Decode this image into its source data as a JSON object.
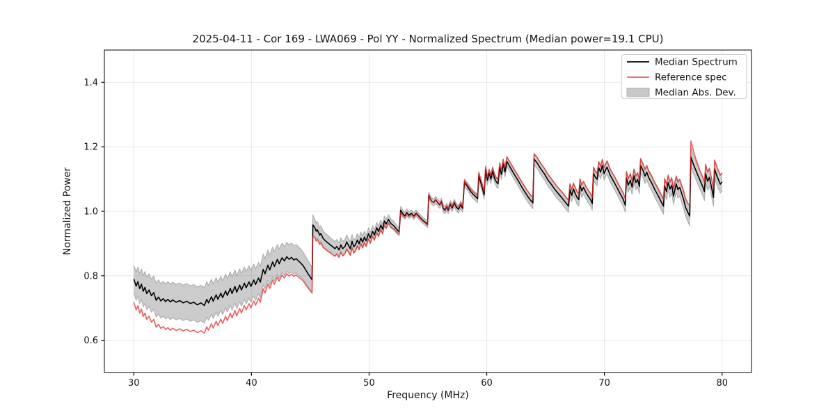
{
  "figure": {
    "title": "2025-04-11 - Cor 169 - LWA069 - Pol YY - Normalized Spectrum (Median power=19.1 CPU)",
    "xlabel": "Frequency (MHz)",
    "ylabel": "Normalized Power"
  },
  "legend": {
    "items": [
      {
        "label": "Median Spectrum",
        "type": "line",
        "color": "#000000"
      },
      {
        "label": "Reference spec",
        "type": "line",
        "color": "#ec5e5e"
      },
      {
        "label": "Median Abs. Dev.",
        "type": "patch",
        "color": "#c9c9c9",
        "edge": "#adadad"
      }
    ]
  },
  "chart_data": {
    "type": "line",
    "title": "2025-04-11 - Cor 169 - LWA069 - Pol YY - Normalized Spectrum (Median power=19.1 CPU)",
    "xlabel": "Frequency (MHz)",
    "ylabel": "Normalized Power",
    "xlim": [
      27.5,
      82.5
    ],
    "ylim": [
      0.5,
      1.5
    ],
    "x_ticks": [
      30,
      40,
      50,
      60,
      70,
      80
    ],
    "x_tick_labels": [
      "30",
      "40",
      "50",
      "60",
      "70",
      "80"
    ],
    "y_ticks": [
      0.6,
      0.8,
      1.0,
      1.2,
      1.4
    ],
    "y_tick_labels": [
      "0.6",
      "0.8",
      "1.0",
      "1.2",
      "1.4"
    ],
    "grid": true,
    "legend_position": "upper right",
    "colors": {
      "median": "#000000",
      "reference": "#e62020",
      "reference_opacity": 0.72,
      "band_fill": "rgba(128,128,128,0.40)",
      "band_edge": "rgba(130,130,130,0.60)",
      "grid": "#e6e6e6"
    },
    "series": [
      {
        "name": "Median Spectrum",
        "x": [
          30.0,
          30.2,
          30.35,
          30.5,
          30.65,
          30.8,
          30.95,
          31.1,
          31.3,
          31.5,
          31.7,
          31.9,
          32.1,
          32.3,
          32.5,
          32.7,
          32.9,
          33.1,
          33.3,
          33.6,
          33.9,
          34.2,
          34.5,
          34.8,
          35.1,
          35.4,
          35.7,
          36.0,
          36.2,
          36.35,
          36.6,
          36.75,
          37.0,
          37.15,
          37.4,
          37.55,
          37.8,
          37.95,
          38.2,
          38.35,
          38.6,
          38.75,
          39.0,
          39.15,
          39.4,
          39.55,
          39.8,
          39.95,
          40.2,
          40.35,
          40.6,
          40.75,
          41.0,
          41.15,
          41.4,
          41.55,
          41.8,
          41.95,
          42.2,
          42.35,
          42.6,
          42.8,
          43.0,
          43.2,
          43.4,
          43.6,
          43.8,
          44.0,
          44.2,
          44.4,
          44.6,
          44.8,
          45.0,
          45.15,
          45.22,
          45.4,
          45.5,
          45.6,
          45.8,
          45.9,
          46.1,
          46.3,
          46.5,
          46.7,
          46.9,
          47.1,
          47.25,
          47.45,
          47.6,
          47.75,
          47.95,
          48.1,
          48.25,
          48.4,
          48.55,
          48.7,
          48.85,
          49.0,
          49.15,
          49.3,
          49.45,
          49.6,
          49.75,
          49.95,
          50.1,
          50.3,
          50.45,
          50.65,
          50.8,
          51.0,
          51.15,
          51.3,
          51.45,
          51.65,
          51.85,
          52.1,
          52.3,
          52.55,
          52.68,
          52.9,
          53.05,
          53.2,
          53.4,
          53.6,
          53.8,
          54.0,
          54.2,
          54.4,
          54.6,
          54.8,
          54.97,
          55.07,
          55.3,
          55.5,
          55.65,
          55.85,
          56.0,
          56.15,
          56.3,
          56.45,
          56.6,
          56.72,
          56.9,
          57.05,
          57.25,
          57.4,
          57.6,
          57.78,
          57.95,
          58.1,
          58.35,
          58.6,
          58.85,
          59.1,
          59.22,
          59.32,
          59.55,
          59.78,
          59.9,
          60.05,
          60.2,
          60.35,
          60.5,
          60.65,
          60.8,
          60.95,
          61.1,
          61.25,
          61.4,
          61.55,
          61.72,
          61.95,
          62.2,
          62.45,
          62.7,
          62.95,
          63.2,
          63.45,
          63.7,
          63.92,
          64.02,
          64.3,
          64.6,
          64.9,
          65.2,
          65.5,
          65.8,
          66.1,
          66.4,
          66.7,
          66.95,
          67.07,
          67.22,
          67.37,
          67.52,
          67.67,
          67.82,
          67.92,
          68.07,
          68.22,
          68.42,
          68.62,
          68.82,
          68.97,
          69.07,
          69.22,
          69.37,
          69.52,
          69.67,
          69.82,
          69.97,
          70.12,
          70.22,
          70.5,
          70.9,
          71.3,
          71.6,
          71.77,
          71.87,
          72.02,
          72.2,
          72.35,
          72.52,
          72.67,
          72.82,
          72.97,
          73.07,
          73.3,
          73.45,
          73.6,
          73.78,
          74.0,
          74.3,
          74.6,
          74.9,
          75.02,
          75.12,
          75.27,
          75.42,
          75.57,
          75.72,
          75.87,
          76.1,
          76.25,
          76.4,
          76.55,
          76.72,
          76.9,
          77.1,
          77.25,
          77.35,
          77.6,
          77.85,
          78.1,
          78.35,
          78.5,
          78.6,
          78.77,
          78.92,
          79.1,
          79.27,
          79.37,
          79.55,
          79.7,
          79.85,
          80.0
        ],
        "y": [
          0.79,
          0.768,
          0.782,
          0.76,
          0.774,
          0.752,
          0.764,
          0.745,
          0.756,
          0.738,
          0.748,
          0.724,
          0.734,
          0.722,
          0.729,
          0.72,
          0.727,
          0.719,
          0.725,
          0.718,
          0.723,
          0.716,
          0.721,
          0.714,
          0.718,
          0.71,
          0.716,
          0.708,
          0.727,
          0.716,
          0.735,
          0.721,
          0.741,
          0.727,
          0.746,
          0.732,
          0.753,
          0.739,
          0.761,
          0.745,
          0.767,
          0.749,
          0.771,
          0.756,
          0.777,
          0.763,
          0.781,
          0.767,
          0.787,
          0.773,
          0.793,
          0.78,
          0.82,
          0.806,
          0.833,
          0.818,
          0.843,
          0.829,
          0.851,
          0.837,
          0.856,
          0.846,
          0.859,
          0.851,
          0.857,
          0.849,
          0.853,
          0.846,
          0.839,
          0.831,
          0.819,
          0.807,
          0.796,
          0.788,
          0.958,
          0.948,
          0.938,
          0.943,
          0.926,
          0.931,
          0.915,
          0.908,
          0.902,
          0.896,
          0.89,
          0.884,
          0.891,
          0.88,
          0.896,
          0.884,
          0.891,
          0.905,
          0.894,
          0.884,
          0.907,
          0.89,
          0.897,
          0.911,
          0.899,
          0.917,
          0.904,
          0.92,
          0.908,
          0.931,
          0.917,
          0.938,
          0.926,
          0.949,
          0.937,
          0.957,
          0.944,
          0.97,
          0.96,
          0.975,
          0.962,
          0.955,
          0.946,
          0.936,
          1.003,
          0.991,
          0.986,
          0.996,
          0.988,
          0.994,
          0.985,
          0.994,
          0.986,
          0.978,
          0.971,
          0.965,
          0.959,
          1.05,
          1.032,
          1.027,
          1.036,
          1.026,
          1.02,
          1.03,
          1.009,
          1.003,
          1.014,
          1.003,
          1.022,
          1.01,
          1.026,
          1.013,
          1.006,
          1.02,
          1.009,
          1.089,
          1.077,
          1.063,
          1.052,
          1.044,
          1.039,
          1.11,
          1.082,
          1.051,
          1.128,
          1.096,
          1.118,
          1.1,
          1.124,
          1.104,
          1.092,
          1.085,
          1.136,
          1.114,
          1.147,
          1.122,
          1.154,
          1.139,
          1.123,
          1.108,
          1.093,
          1.077,
          1.062,
          1.048,
          1.035,
          1.026,
          1.162,
          1.149,
          1.131,
          1.116,
          1.097,
          1.083,
          1.067,
          1.054,
          1.041,
          1.027,
          1.016,
          1.067,
          1.049,
          1.069,
          1.055,
          1.043,
          1.036,
          1.082,
          1.063,
          1.074,
          1.059,
          1.047,
          1.036,
          1.024,
          1.118,
          1.106,
          1.099,
          1.135,
          1.121,
          1.142,
          1.117,
          1.13,
          1.137,
          1.111,
          1.085,
          1.057,
          1.037,
          1.019,
          1.103,
          1.081,
          1.096,
          1.075,
          1.11,
          1.089,
          1.099,
          1.077,
          1.142,
          1.125,
          1.109,
          1.121,
          1.103,
          1.089,
          1.066,
          1.046,
          1.024,
          1.016,
          1.079,
          1.061,
          1.089,
          1.069,
          1.081,
          1.047,
          1.085,
          1.067,
          1.074,
          1.057,
          1.038,
          1.012,
          0.996,
          0.985,
          1.168,
          1.142,
          1.12,
          1.098,
          1.077,
          1.061,
          1.117,
          1.093,
          1.105,
          1.075,
          1.043,
          1.131,
          1.11,
          1.097,
          1.084,
          1.091
        ]
      },
      {
        "name": "Reference spec",
        "derived": "median_plus_offset",
        "offset_keypoints": {
          "x": [
            30,
            31,
            33,
            36,
            38,
            40,
            42,
            44,
            45.15,
            45.25,
            46,
            47,
            48,
            49,
            50,
            51,
            52,
            53,
            54,
            55,
            56,
            57,
            58,
            59,
            60,
            61,
            62,
            64,
            66,
            68,
            70,
            72,
            74,
            76,
            77.2,
            77.35,
            77.6,
            78,
            79,
            80
          ],
          "dy": [
            -0.072,
            -0.08,
            -0.088,
            -0.086,
            -0.078,
            -0.066,
            -0.055,
            -0.05,
            -0.042,
            -0.032,
            -0.028,
            -0.024,
            -0.022,
            -0.018,
            -0.016,
            -0.014,
            -0.01,
            -0.005,
            -0.003,
            -0.002,
            0.002,
            0.004,
            0.006,
            0.008,
            0.01,
            0.013,
            0.015,
            0.016,
            0.018,
            0.018,
            0.018,
            0.02,
            0.02,
            0.022,
            0.028,
            0.05,
            0.04,
            0.03,
            0.028,
            0.028
          ]
        }
      },
      {
        "name": "Median Abs. Dev.",
        "derived": "band_around_median",
        "halfwidth_keypoints": {
          "x": [
            30,
            31,
            33,
            36,
            38,
            40,
            42,
            44,
            45.1,
            45.3,
            46,
            47,
            48,
            49,
            50,
            51,
            52,
            53,
            54,
            55,
            56,
            58,
            60,
            62,
            64,
            66,
            68,
            70,
            72,
            74,
            76,
            77.35,
            78,
            80
          ],
          "hw": [
            0.043,
            0.05,
            0.055,
            0.055,
            0.052,
            0.05,
            0.046,
            0.044,
            0.04,
            0.026,
            0.024,
            0.022,
            0.022,
            0.02,
            0.018,
            0.016,
            0.014,
            0.011,
            0.01,
            0.01,
            0.011,
            0.012,
            0.014,
            0.016,
            0.018,
            0.019,
            0.02,
            0.021,
            0.022,
            0.024,
            0.026,
            0.03,
            0.028,
            0.028
          ]
        }
      }
    ]
  }
}
